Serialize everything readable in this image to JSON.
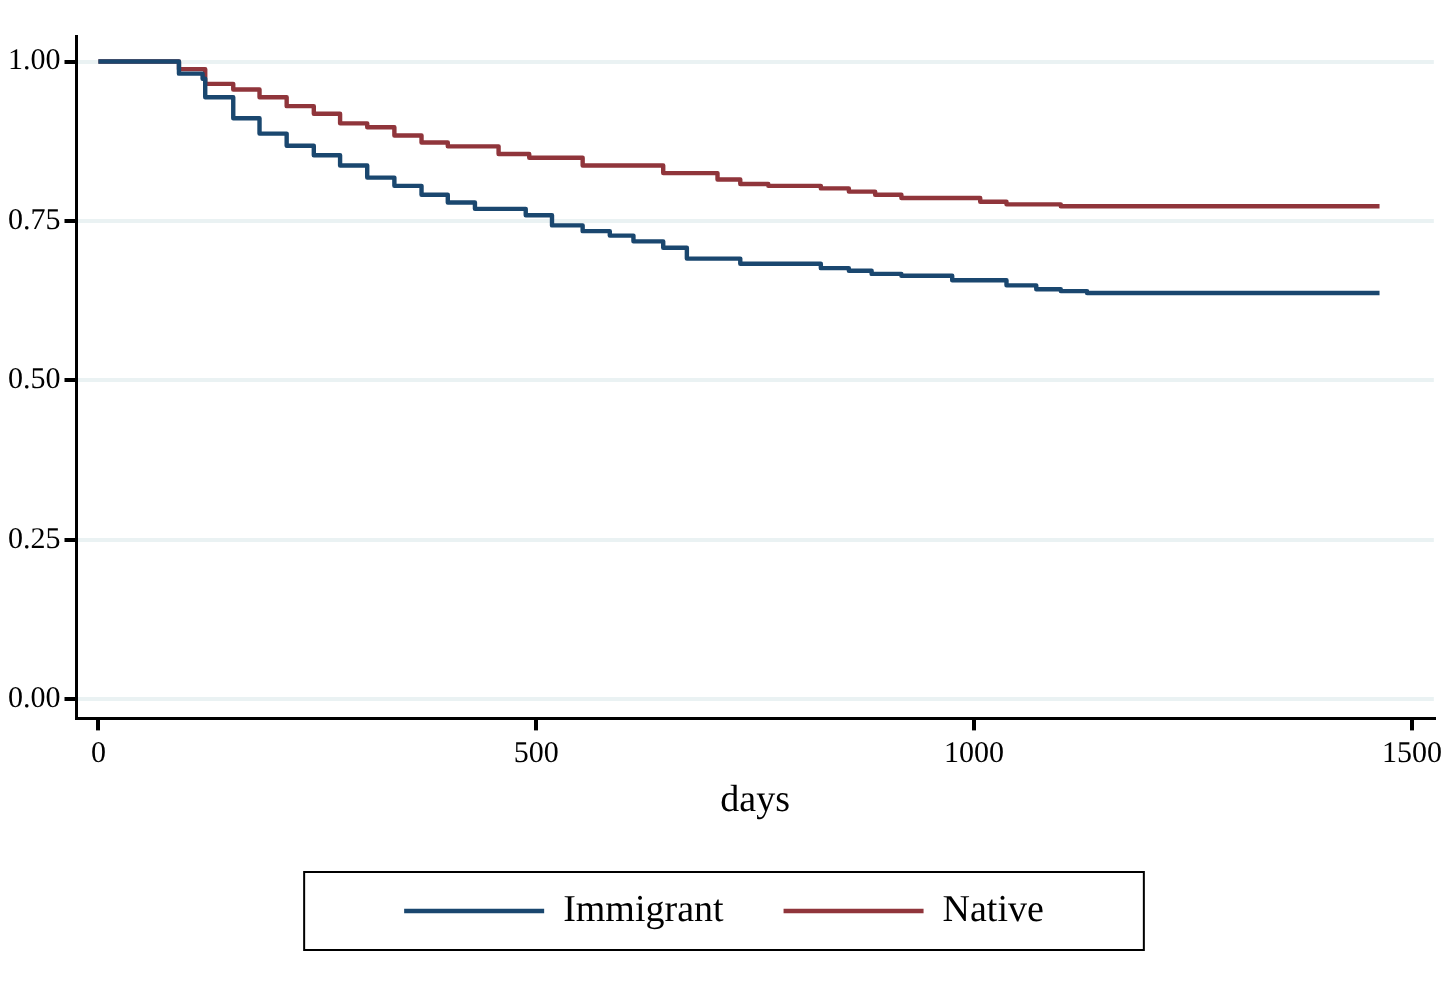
{
  "chart_data": {
    "type": "step",
    "xlabel": "days",
    "xlim": [
      -25,
      1525
    ],
    "xticks": [
      0,
      500,
      1000,
      1500
    ],
    "ylim": [
      -0.03,
      1.04
    ],
    "yticks": [
      {
        "value": 0,
        "label": "0.00"
      },
      {
        "value": 0.25,
        "label": "0.25"
      },
      {
        "value": 0.5,
        "label": "0.50"
      },
      {
        "value": 0.75,
        "label": "0.75"
      },
      {
        "value": 1,
        "label": "1.00"
      }
    ],
    "grid": "y",
    "legend": "bottom",
    "marker": "none",
    "line_style": "solid",
    "series": [
      {
        "name": "Immigrant",
        "color": "#1a476f",
        "x": [
          0,
          92,
          119,
          122,
          154,
          184,
          215,
          246,
          276,
          307,
          338,
          369,
          399,
          430,
          488,
          518,
          553,
          584,
          611,
          645,
          672,
          733,
          825,
          857,
          883,
          917,
          975,
          1037,
          1071,
          1099,
          1129,
          1463
        ],
        "values": [
          1,
          0.981,
          0.973,
          0.944,
          0.911,
          0.887,
          0.868,
          0.853,
          0.837,
          0.818,
          0.805,
          0.791,
          0.779,
          0.769,
          0.759,
          0.743,
          0.734,
          0.727,
          0.718,
          0.708,
          0.691,
          0.683,
          0.676,
          0.672,
          0.667,
          0.664,
          0.657,
          0.649,
          0.643,
          0.64,
          0.637,
          0.637
        ]
      },
      {
        "name": "Native",
        "color": "#90353b",
        "x": [
          0,
          92,
          122,
          154,
          184,
          215,
          246,
          276,
          307,
          338,
          369,
          399,
          457,
          492,
          553,
          645,
          707,
          733,
          765,
          825,
          857,
          887,
          917,
          1007,
          1037,
          1099,
          1463
        ],
        "values": [
          1,
          0.988,
          0.965,
          0.956,
          0.944,
          0.93,
          0.918,
          0.903,
          0.897,
          0.884,
          0.873,
          0.867,
          0.855,
          0.849,
          0.837,
          0.825,
          0.815,
          0.808,
          0.805,
          0.801,
          0.796,
          0.791,
          0.786,
          0.78,
          0.776,
          0.773,
          0.773
        ]
      }
    ]
  }
}
